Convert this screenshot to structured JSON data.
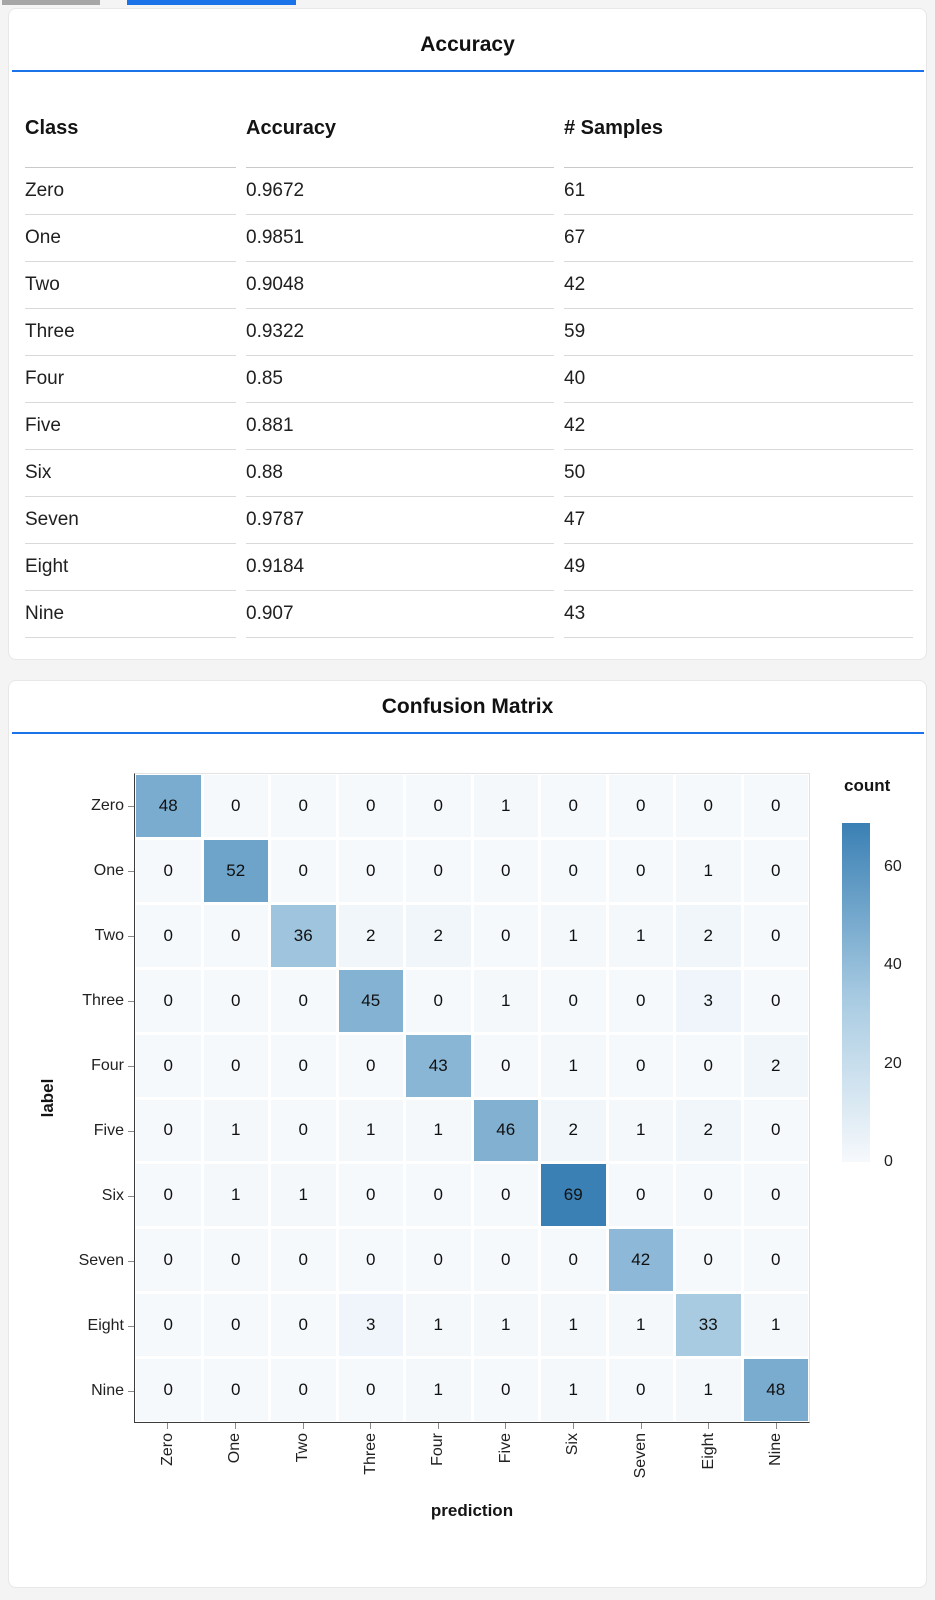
{
  "colors": {
    "accent_blue": "#1a73e8",
    "top_bar_gray": "#a6a6a6"
  },
  "accuracy_table": {
    "title": "Accuracy",
    "columns": [
      "Class",
      "Accuracy",
      "# Samples"
    ],
    "rows": [
      [
        "Zero",
        "0.9672",
        "61"
      ],
      [
        "One",
        "0.9851",
        "67"
      ],
      [
        "Two",
        "0.9048",
        "42"
      ],
      [
        "Three",
        "0.9322",
        "59"
      ],
      [
        "Four",
        "0.85",
        "40"
      ],
      [
        "Five",
        "0.881",
        "42"
      ],
      [
        "Six",
        "0.88",
        "50"
      ],
      [
        "Seven",
        "0.9787",
        "47"
      ],
      [
        "Eight",
        "0.9184",
        "49"
      ],
      [
        "Nine",
        "0.907",
        "43"
      ]
    ]
  },
  "confusion_panel": {
    "title": "Confusion Matrix"
  },
  "chart_data": {
    "type": "heatmap",
    "title": "Confusion Matrix",
    "xlabel": "prediction",
    "ylabel": "label",
    "x_categories": [
      "Zero",
      "One",
      "Two",
      "Three",
      "Four",
      "Five",
      "Six",
      "Seven",
      "Eight",
      "Nine"
    ],
    "y_categories": [
      "Zero",
      "One",
      "Two",
      "Three",
      "Four",
      "Five",
      "Six",
      "Seven",
      "Eight",
      "Nine"
    ],
    "values": [
      [
        48,
        0,
        0,
        0,
        0,
        1,
        0,
        0,
        0,
        0
      ],
      [
        0,
        52,
        0,
        0,
        0,
        0,
        0,
        0,
        1,
        0
      ],
      [
        0,
        0,
        36,
        2,
        2,
        0,
        1,
        1,
        2,
        0
      ],
      [
        0,
        0,
        0,
        45,
        0,
        1,
        0,
        0,
        3,
        0
      ],
      [
        0,
        0,
        0,
        0,
        43,
        0,
        1,
        0,
        0,
        2
      ],
      [
        0,
        1,
        0,
        1,
        1,
        46,
        2,
        1,
        2,
        0
      ],
      [
        0,
        1,
        1,
        0,
        0,
        0,
        69,
        0,
        0,
        0
      ],
      [
        0,
        0,
        0,
        0,
        0,
        0,
        0,
        42,
        0,
        0
      ],
      [
        0,
        0,
        0,
        3,
        1,
        1,
        1,
        1,
        33,
        1
      ],
      [
        0,
        0,
        0,
        0,
        1,
        0,
        1,
        0,
        1,
        48
      ]
    ],
    "color_domain": [
      0,
      69
    ],
    "colors": {
      "min": "#f6f9fc",
      "mid": "#a8cbe2",
      "max": "#3a80b4"
    },
    "legend": {
      "title": "count",
      "ticks": [
        60,
        40,
        20,
        0
      ],
      "position": "right"
    },
    "grid": false
  }
}
